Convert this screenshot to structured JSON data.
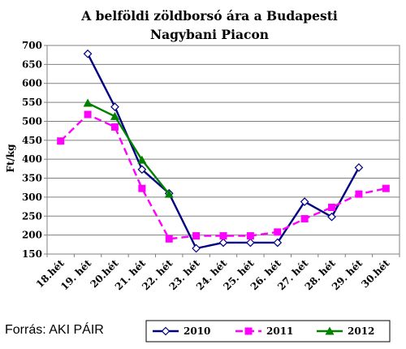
{
  "chart_data": {
    "type": "line",
    "title_lines": [
      "A belföldi zöldborsó ára a Budapesti",
      "Nagybani Piacon"
    ],
    "ylabel": "Ft/kg",
    "xlabel": "",
    "categories": [
      "18.hét",
      "19. hét",
      "20.hét",
      "21. hét",
      "22. hét",
      "23. hét",
      "24. hét",
      "25. hét",
      "26. hét",
      "27. hét",
      "28. hét",
      "29. hét",
      "30.hét"
    ],
    "ylim": [
      150,
      700
    ],
    "yticks": [
      150,
      200,
      250,
      300,
      350,
      400,
      450,
      500,
      550,
      600,
      650,
      700
    ],
    "grid": true,
    "legend_position": "bottom",
    "series": [
      {
        "name": "2010",
        "color": "#000080",
        "dash": "solid",
        "marker": "diamond",
        "points": [
          [
            1,
            678
          ],
          [
            2,
            538
          ],
          [
            3,
            373
          ],
          [
            4,
            310
          ],
          [
            5,
            165
          ],
          [
            6,
            180
          ],
          [
            7,
            180
          ],
          [
            8,
            180
          ],
          [
            9,
            288
          ],
          [
            10,
            248
          ],
          [
            11,
            378
          ]
        ]
      },
      {
        "name": "2011",
        "color": "#FF00FF",
        "dash": "dashed",
        "marker": "square",
        "points": [
          [
            0,
            448
          ],
          [
            1,
            518
          ],
          [
            2,
            485
          ],
          [
            3,
            323
          ],
          [
            4,
            190
          ],
          [
            5,
            198
          ],
          [
            6,
            198
          ],
          [
            7,
            198
          ],
          [
            8,
            208
          ],
          [
            9,
            243
          ],
          [
            10,
            273
          ],
          [
            11,
            308
          ],
          [
            12,
            323
          ]
        ]
      },
      {
        "name": "2012",
        "color": "#008000",
        "dash": "solid",
        "marker": "triangle",
        "points": [
          [
            1,
            548
          ],
          [
            2,
            513
          ],
          [
            3,
            398
          ],
          [
            4,
            308
          ]
        ]
      }
    ]
  },
  "source_text": "Forrás: AKI PÁIR"
}
